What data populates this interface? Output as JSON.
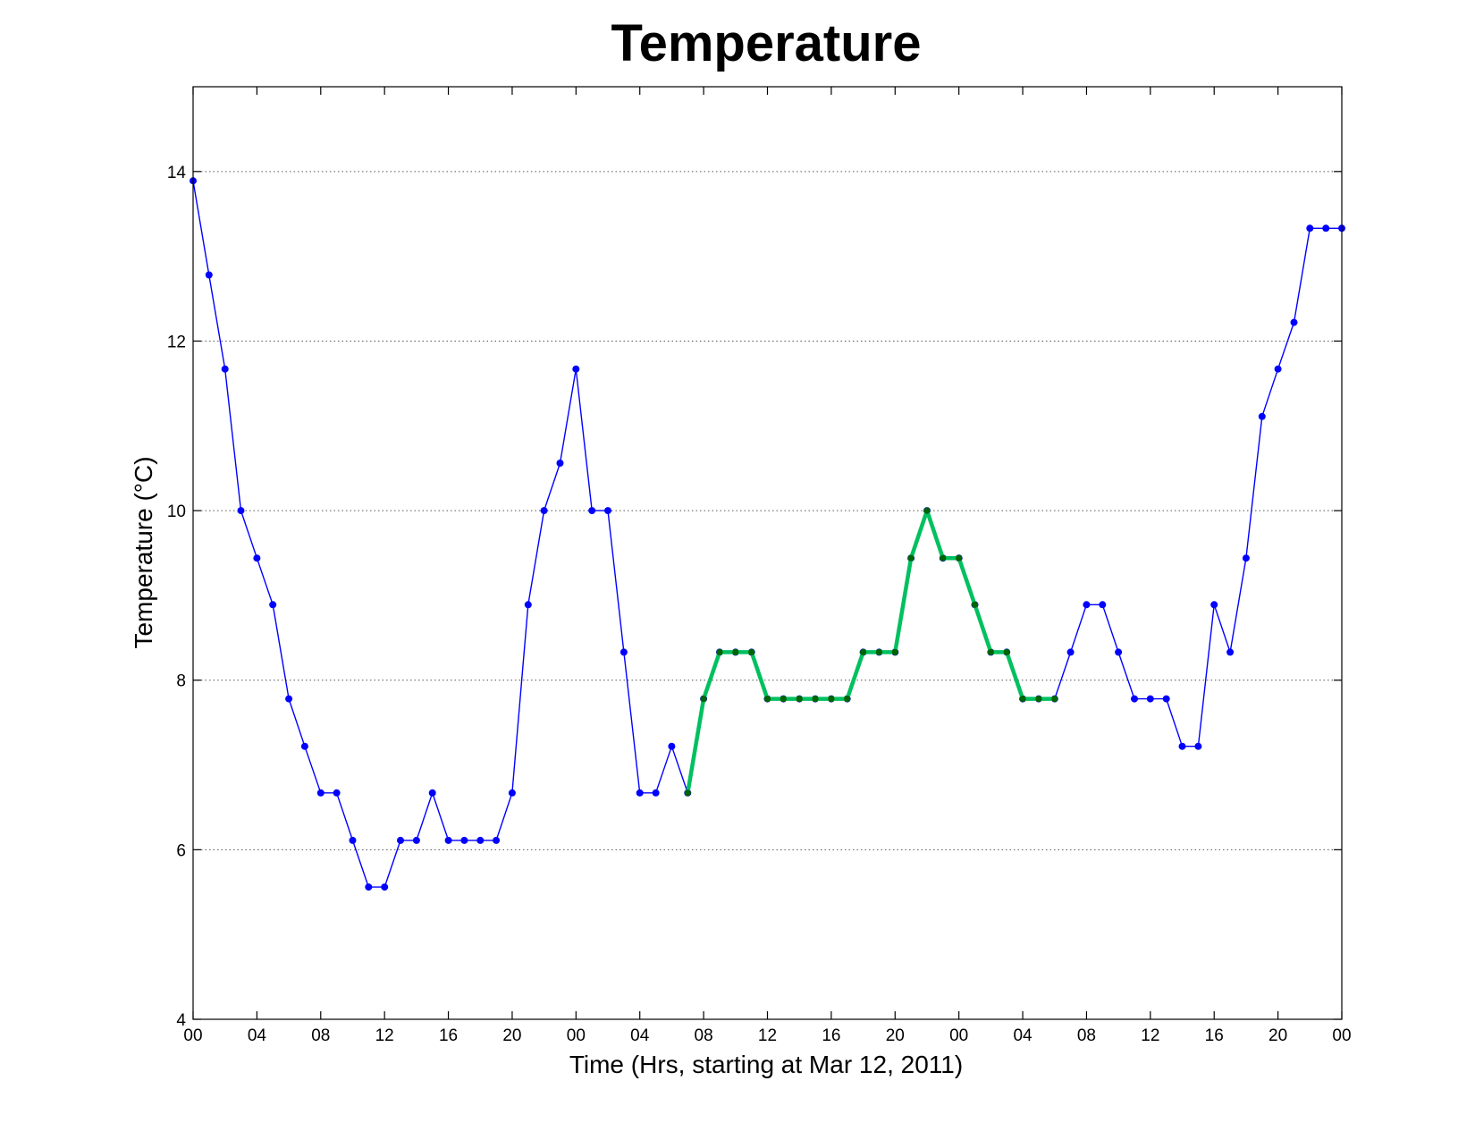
{
  "chart_data": {
    "type": "line",
    "title": "Temperature",
    "xlabel": "Time (Hrs, starting at Mar 12, 2011)",
    "ylabel": "Temperature (°C)",
    "xlim": [
      0,
      72
    ],
    "ylim": [
      4,
      15
    ],
    "x_ticks": [
      0,
      4,
      8,
      12,
      16,
      20,
      24,
      28,
      32,
      36,
      40,
      44,
      48,
      52,
      56,
      60,
      64,
      68,
      72
    ],
    "x_tick_labels": [
      "00",
      "04",
      "08",
      "12",
      "16",
      "20",
      "00",
      "04",
      "08",
      "12",
      "16",
      "20",
      "00",
      "04",
      "08",
      "12",
      "16",
      "20",
      "00"
    ],
    "y_ticks": [
      4,
      6,
      8,
      10,
      12,
      14
    ],
    "y_tick_labels": [
      "4",
      "6",
      "8",
      "10",
      "12",
      "14"
    ],
    "grid": "horizontal dotted at y ticks",
    "series": [
      {
        "color": "#0000ff",
        "x": [
          0,
          1,
          2,
          3,
          4,
          5,
          6,
          7,
          8,
          9,
          10,
          11,
          12,
          13,
          14,
          15,
          16,
          17,
          18,
          19,
          20,
          21,
          22,
          23,
          24,
          25,
          26,
          27,
          28,
          29,
          30,
          31,
          32,
          33,
          34,
          35,
          36,
          37,
          38,
          39,
          40,
          41,
          42,
          43,
          44,
          45,
          46,
          47,
          48,
          49,
          50,
          51,
          52,
          53,
          54,
          55,
          56,
          57,
          58,
          59,
          60,
          61,
          62,
          63,
          64,
          65,
          66,
          67,
          68,
          69,
          70,
          71,
          72
        ],
        "values": [
          13.89,
          12.78,
          11.67,
          10.0,
          9.44,
          8.89,
          7.78,
          7.22,
          6.67,
          6.67,
          6.11,
          5.56,
          5.56,
          6.11,
          6.11,
          6.67,
          6.11,
          6.11,
          6.11,
          6.11,
          6.67,
          8.89,
          10.0,
          10.56,
          11.67,
          10.0,
          10.0,
          8.33,
          6.67,
          6.67,
          7.22,
          6.67,
          7.78,
          8.33,
          8.33,
          8.33,
          7.78,
          7.78,
          7.78,
          7.78,
          7.78,
          7.78,
          8.33,
          8.33,
          8.33,
          9.44,
          10.0,
          9.44,
          9.44,
          8.89,
          8.33,
          8.33,
          7.78,
          7.78,
          7.78,
          8.33,
          8.89,
          8.89,
          8.33,
          7.78,
          7.78,
          7.78,
          7.22,
          7.22,
          8.89,
          8.33,
          9.44,
          11.11,
          11.67,
          12.22,
          13.33,
          13.33,
          13.33
        ]
      },
      {
        "color": "#00c060",
        "marker_color": "#006400",
        "x": [
          31,
          32,
          33,
          34,
          35,
          36,
          37,
          38,
          39,
          40,
          41,
          42,
          43,
          44,
          45,
          46,
          47,
          48,
          49,
          50,
          51,
          52,
          53,
          54
        ],
        "values": [
          6.67,
          7.78,
          8.33,
          8.33,
          8.33,
          7.78,
          7.78,
          7.78,
          7.78,
          7.78,
          7.78,
          8.33,
          8.33,
          8.33,
          9.44,
          10.0,
          9.44,
          9.44,
          8.89,
          8.33,
          8.33,
          7.78,
          7.78,
          7.78
        ]
      }
    ]
  }
}
